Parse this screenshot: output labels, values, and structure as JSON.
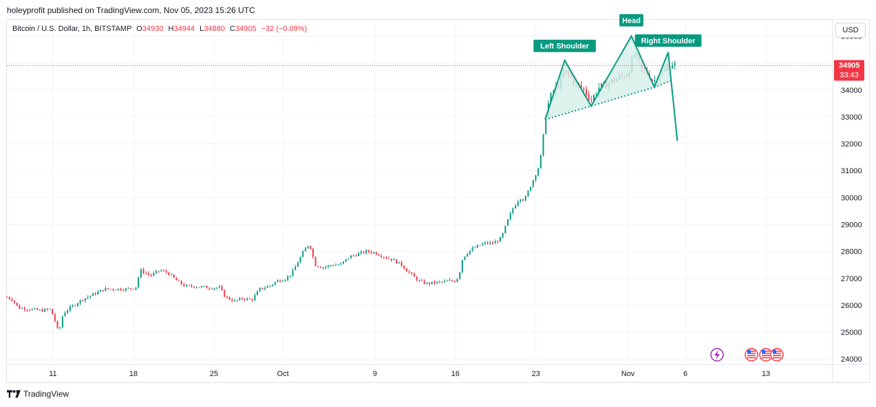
{
  "header": {
    "published": "holeyprofit published on TradingView.com, Nov 05, 2023 15:26 UTC"
  },
  "legend": {
    "symbol": "Bitcoin / U.S. Dollar, 1h, BITSTAMP",
    "o_label": "O",
    "o_value": "34930",
    "h_label": "H",
    "h_value": "34944",
    "l_label": "L",
    "l_value": "34880",
    "c_label": "C",
    "c_value": "34905",
    "change": "−32 (−0.09%)"
  },
  "currency_button": "USD",
  "price_badge": {
    "price": "34905",
    "countdown": "33:43"
  },
  "footer": {
    "brand": "TradingView"
  },
  "colors": {
    "up": "#089981",
    "down": "#f23645",
    "pattern": "#089981",
    "pattern_fill": "#d4efe8",
    "grid": "#f0f3fa",
    "event": "#9c27b0"
  },
  "chart_data": {
    "type": "candlestick",
    "title": "",
    "y_ticks": [
      24000,
      25000,
      26000,
      27000,
      28000,
      29000,
      30000,
      31000,
      32000,
      33000,
      34000,
      35000,
      36000
    ],
    "ylim": [
      23800,
      36600
    ],
    "x_ticks": [
      {
        "label": "11",
        "day": 11
      },
      {
        "label": "18",
        "day": 18
      },
      {
        "label": "25",
        "day": 25
      },
      {
        "label": "Oct",
        "day": 31
      },
      {
        "label": "9",
        "day": 39
      },
      {
        "label": "16",
        "day": 46
      },
      {
        "label": "23",
        "day": 53
      },
      {
        "label": "Nov",
        "day": 61
      },
      {
        "label": "6",
        "day": 66
      },
      {
        "label": "13",
        "day": 73
      }
    ],
    "xlim": [
      7.0,
      78.8
    ],
    "price_path": [
      [
        7.0,
        26300
      ],
      [
        7.5,
        26200
      ],
      [
        8.0,
        25900
      ],
      [
        9.0,
        25850
      ],
      [
        10.0,
        25800
      ],
      [
        10.8,
        25850
      ],
      [
        11.2,
        25400
      ],
      [
        11.5,
        24950
      ],
      [
        11.9,
        25700
      ],
      [
        12.5,
        25900
      ],
      [
        13.5,
        26200
      ],
      [
        14.5,
        26400
      ],
      [
        15.5,
        26600
      ],
      [
        16.5,
        26600
      ],
      [
        17.5,
        26600
      ],
      [
        18.2,
        26650
      ],
      [
        18.6,
        27300
      ],
      [
        19.5,
        27100
      ],
      [
        20.3,
        27300
      ],
      [
        21.0,
        27200
      ],
      [
        21.8,
        26900
      ],
      [
        22.5,
        26700
      ],
      [
        23.5,
        26700
      ],
      [
        24.5,
        26650
      ],
      [
        25.5,
        26650
      ],
      [
        26.0,
        26300
      ],
      [
        26.8,
        26150
      ],
      [
        27.5,
        26250
      ],
      [
        28.3,
        26200
      ],
      [
        29.0,
        26600
      ],
      [
        29.8,
        26700
      ],
      [
        30.5,
        26900
      ],
      [
        31.3,
        27000
      ],
      [
        31.8,
        27200
      ],
      [
        32.3,
        27600
      ],
      [
        32.8,
        28000
      ],
      [
        33.3,
        28300
      ],
      [
        33.8,
        27500
      ],
      [
        34.5,
        27400
      ],
      [
        35.3,
        27500
      ],
      [
        36.0,
        27500
      ],
      [
        36.8,
        27800
      ],
      [
        37.5,
        27900
      ],
      [
        38.3,
        28000
      ],
      [
        39.0,
        27950
      ],
      [
        39.8,
        27800
      ],
      [
        40.5,
        27700
      ],
      [
        41.3,
        27500
      ],
      [
        42.0,
        27200
      ],
      [
        42.8,
        26900
      ],
      [
        43.5,
        26800
      ],
      [
        44.5,
        26850
      ],
      [
        45.5,
        26900
      ],
      [
        46.0,
        26900
      ],
      [
        46.3,
        27100
      ],
      [
        46.6,
        27700
      ],
      [
        46.9,
        27900
      ],
      [
        47.5,
        28100
      ],
      [
        48.5,
        28300
      ],
      [
        49.3,
        28300
      ],
      [
        50.0,
        28500
      ],
      [
        50.5,
        29100
      ],
      [
        51.0,
        29600
      ],
      [
        51.6,
        30000
      ],
      [
        52.0,
        29900
      ],
      [
        52.4,
        30300
      ],
      [
        52.8,
        30700
      ],
      [
        53.2,
        31100
      ],
      [
        53.5,
        31700
      ],
      [
        53.8,
        33000
      ],
      [
        54.2,
        33700
      ],
      [
        54.6,
        34000
      ],
      [
        55.0,
        34200
      ],
      [
        55.5,
        34700
      ],
      [
        56.0,
        34500
      ],
      [
        56.5,
        34200
      ],
      [
        57.2,
        34000
      ],
      [
        57.8,
        33600
      ],
      [
        58.5,
        34100
      ],
      [
        59.5,
        34300
      ],
      [
        60.5,
        34500
      ],
      [
        61.0,
        34600
      ],
      [
        61.5,
        35300
      ],
      [
        61.8,
        35200
      ],
      [
        62.2,
        34800
      ],
      [
        62.7,
        34600
      ],
      [
        63.2,
        34300
      ],
      [
        63.7,
        34600
      ],
      [
        64.2,
        34700
      ],
      [
        64.8,
        35000
      ],
      [
        65.2,
        34905
      ]
    ],
    "pattern": {
      "labels": [
        "Left Shoulder",
        "Head",
        "Right Shoulder"
      ],
      "shoulders_line": [
        [
          53.8,
          32900
        ],
        [
          55.5,
          35100
        ],
        [
          57.8,
          33400
        ],
        [
          61.3,
          36000
        ],
        [
          63.3,
          34100
        ],
        [
          64.5,
          35400
        ],
        [
          65.3,
          32100
        ]
      ],
      "neckline": [
        [
          53.8,
          32900
        ],
        [
          57.8,
          33400
        ],
        [
          63.3,
          34100
        ],
        [
          64.8,
          34350
        ]
      ]
    },
    "last_price": 34905
  }
}
